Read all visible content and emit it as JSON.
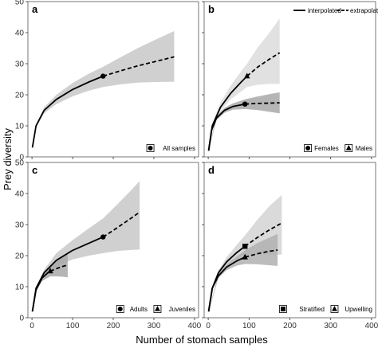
{
  "xlabel": "Number of stomach samples",
  "ylabel": "Prey diversity",
  "legend": {
    "interpolated": "interpolated",
    "extrapolated": "extrapolated"
  },
  "chart_data": [
    {
      "panel": "a",
      "type": "line",
      "xticks": [
        0,
        100,
        200,
        300,
        400
      ],
      "yticks": [
        0,
        10,
        20,
        30,
        40,
        50
      ],
      "xlim": [
        -10,
        410
      ],
      "ylim": [
        0,
        50
      ],
      "legend_position": "bottom-right",
      "series": [
        {
          "name": "All samples",
          "marker": "circle",
          "color": "#000000",
          "band_color": "#c8c8c8",
          "interpolated": {
            "x": [
              1,
              10,
              30,
              60,
              100,
              140,
              175
            ],
            "y": [
              3,
              10,
              15,
              18.5,
              21.7,
              24.1,
              26
            ]
          },
          "observed": {
            "x": 175,
            "y": 26
          },
          "extrapolated": {
            "x": [
              175,
              220,
              260,
              300,
              350
            ],
            "y": [
              26,
              27.8,
              29.3,
              30.6,
              32.2
            ]
          },
          "ci_lower": [
            [
              1,
              3
            ],
            [
              10,
              9.5
            ],
            [
              30,
              14
            ],
            [
              60,
              17
            ],
            [
              100,
              19.5
            ],
            [
              140,
              21.3
            ],
            [
              175,
              22.5
            ],
            [
              220,
              23.4
            ],
            [
              260,
              23.9
            ],
            [
              300,
              24.1
            ],
            [
              350,
              24.2
            ]
          ],
          "ci_upper": [
            [
              1,
              3
            ],
            [
              10,
              10.5
            ],
            [
              30,
              16
            ],
            [
              60,
              20
            ],
            [
              100,
              23.8
            ],
            [
              140,
              26.8
            ],
            [
              175,
              29
            ],
            [
              220,
              32.2
            ],
            [
              260,
              35
            ],
            [
              300,
              37.5
            ],
            [
              350,
              40.5
            ]
          ]
        }
      ]
    },
    {
      "panel": "b",
      "type": "line",
      "xticks": [
        0,
        100,
        200,
        300,
        400
      ],
      "yticks": [
        0,
        10,
        20,
        30,
        40,
        50
      ],
      "xlim": [
        -10,
        410
      ],
      "ylim": [
        0,
        50
      ],
      "legend_position": "bottom-right",
      "series": [
        {
          "name": "Females",
          "marker": "circle",
          "color": "#000000",
          "band_color": "#a8a8a8",
          "interpolated": {
            "x": [
              1,
              8,
              20,
              40,
              60,
              90
            ],
            "y": [
              2,
              8.5,
              12.5,
              15,
              16.2,
              17
            ]
          },
          "observed": {
            "x": 90,
            "y": 17
          },
          "extrapolated": {
            "x": [
              90,
              120,
              150,
              175
            ],
            "y": [
              17,
              17.2,
              17.3,
              17.4
            ]
          },
          "ci_lower": [
            [
              1,
              2
            ],
            [
              20,
              11.8
            ],
            [
              40,
              14.2
            ],
            [
              60,
              15.2
            ],
            [
              90,
              15.4
            ],
            [
              120,
              15.1
            ],
            [
              150,
              14.5
            ],
            [
              175,
              14
            ]
          ],
          "ci_upper": [
            [
              1,
              2
            ],
            [
              20,
              13.2
            ],
            [
              40,
              15.8
            ],
            [
              60,
              17.2
            ],
            [
              90,
              18.5
            ],
            [
              120,
              19.4
            ],
            [
              150,
              20.2
            ],
            [
              175,
              20.8
            ]
          ]
        },
        {
          "name": "Males",
          "marker": "triangle",
          "color": "#000000",
          "band_color": "#dcdcdc",
          "interpolated": {
            "x": [
              1,
              10,
              30,
              55,
              80,
              95
            ],
            "y": [
              2,
              10,
              16,
              20.5,
              24,
              26
            ]
          },
          "observed": {
            "x": 95,
            "y": 26
          },
          "extrapolated": {
            "x": [
              95,
              120,
              150,
              175
            ],
            "y": [
              26,
              28.8,
              31.5,
              33.5
            ]
          },
          "ci_lower": [
            [
              1,
              2
            ],
            [
              10,
              9.3
            ],
            [
              30,
              14.8
            ],
            [
              55,
              18.5
            ],
            [
              80,
              21
            ],
            [
              95,
              22.5
            ],
            [
              120,
              23.2
            ],
            [
              150,
              23.5
            ],
            [
              175,
              23.5
            ]
          ],
          "ci_upper": [
            [
              1,
              2
            ],
            [
              10,
              10.7
            ],
            [
              30,
              17.5
            ],
            [
              55,
              23
            ],
            [
              80,
              27.5
            ],
            [
              95,
              30
            ],
            [
              120,
              35
            ],
            [
              150,
              40
            ],
            [
              175,
              44.5
            ]
          ]
        }
      ]
    },
    {
      "panel": "c",
      "type": "line",
      "xticks": [
        0,
        100,
        200,
        300,
        400
      ],
      "yticks": [
        0,
        10,
        20,
        30,
        40,
        50
      ],
      "xlim": [
        -10,
        410
      ],
      "ylim": [
        0,
        50
      ],
      "legend_position": "bottom-right",
      "series": [
        {
          "name": "Adults",
          "marker": "circle",
          "color": "#000000",
          "band_color": "#c8c8c8",
          "interpolated": {
            "x": [
              1,
              10,
              30,
              60,
              100,
              140,
              175
            ],
            "y": [
              2,
              9.5,
              14.5,
              18.5,
              21.7,
              24,
              26
            ]
          },
          "observed": {
            "x": 175,
            "y": 26
          },
          "extrapolated": {
            "x": [
              175,
              210,
              240,
              265
            ],
            "y": [
              26,
              29,
              31.7,
              34
            ]
          },
          "ci_lower": [
            [
              1,
              2
            ],
            [
              10,
              9
            ],
            [
              30,
              13.5
            ],
            [
              60,
              16.5
            ],
            [
              100,
              18.8
            ],
            [
              140,
              20
            ],
            [
              175,
              20.8
            ],
            [
              210,
              21.5
            ],
            [
              240,
              21.8
            ],
            [
              265,
              22
            ]
          ],
          "ci_upper": [
            [
              1,
              2
            ],
            [
              10,
              10
            ],
            [
              30,
              15.5
            ],
            [
              60,
              20.8
            ],
            [
              100,
              25
            ],
            [
              140,
              28.8
            ],
            [
              175,
              32
            ],
            [
              210,
              36.5
            ],
            [
              240,
              40.5
            ],
            [
              265,
              44
            ]
          ]
        },
        {
          "name": "Juveniles",
          "marker": "triangle",
          "color": "#000000",
          "band_color": "#a8a8a8",
          "interpolated": {
            "x": [
              1,
              10,
              25,
              40,
              45
            ],
            "y": [
              2,
              9,
              12.8,
              14.6,
              15
            ]
          },
          "observed": {
            "x": 45,
            "y": 15
          },
          "extrapolated": {
            "x": [
              45,
              60,
              75,
              88
            ],
            "y": [
              15,
              15.8,
              16.5,
              17
            ]
          },
          "ci_lower": [
            [
              1,
              2
            ],
            [
              10,
              8.4
            ],
            [
              25,
              11.8
            ],
            [
              45,
              13.3
            ],
            [
              60,
              13.3
            ],
            [
              75,
              13.2
            ],
            [
              88,
              13
            ]
          ],
          "ci_upper": [
            [
              1,
              2
            ],
            [
              10,
              9.6
            ],
            [
              25,
              13.8
            ],
            [
              45,
              16.7
            ],
            [
              60,
              18.3
            ],
            [
              75,
              19.8
            ],
            [
              88,
              20.5
            ]
          ]
        }
      ]
    },
    {
      "panel": "d",
      "type": "line",
      "xticks": [
        0,
        100,
        200,
        300,
        400
      ],
      "yticks": [
        0,
        10,
        20,
        30,
        40,
        50
      ],
      "xlim": [
        -10,
        410
      ],
      "ylim": [
        0,
        50
      ],
      "legend_position": "bottom-right",
      "series": [
        {
          "name": "Stratified",
          "marker": "square",
          "color": "#000000",
          "band_color": "#d4d4d4",
          "interpolated": {
            "x": [
              1,
              10,
              25,
              45,
              70,
              90
            ],
            "y": [
              2,
              9.5,
              14.5,
              18,
              21,
              23
            ]
          },
          "observed": {
            "x": 90,
            "y": 23
          },
          "extrapolated": {
            "x": [
              90,
              120,
              150,
              180
            ],
            "y": [
              23,
              25.8,
              28.3,
              30.5
            ]
          },
          "ci_lower": [
            [
              1,
              2
            ],
            [
              10,
              9
            ],
            [
              25,
              13.8
            ],
            [
              45,
              16.8
            ],
            [
              70,
              19
            ],
            [
              90,
              20
            ],
            [
              120,
              20.2
            ],
            [
              150,
              20.3
            ],
            [
              180,
              20.3
            ]
          ],
          "ci_upper": [
            [
              1,
              2
            ],
            [
              10,
              10
            ],
            [
              25,
              15.2
            ],
            [
              45,
              19.5
            ],
            [
              70,
              23.5
            ],
            [
              90,
              26.5
            ],
            [
              120,
              31.5
            ],
            [
              150,
              36
            ],
            [
              180,
              39.5
            ]
          ]
        },
        {
          "name": "Upwelling",
          "marker": "triangle",
          "color": "#000000",
          "band_color": "#b0b0b0",
          "interpolated": {
            "x": [
              1,
              10,
              25,
              45,
              70,
              90
            ],
            "y": [
              2,
              9.5,
              13.5,
              16.3,
              18.3,
              19.5
            ]
          },
          "observed": {
            "x": 90,
            "y": 19.5
          },
          "extrapolated": {
            "x": [
              90,
              120,
              150,
              170
            ],
            "y": [
              19.5,
              20.6,
              21.4,
              21.8
            ]
          },
          "ci_lower": [
            [
              1,
              2
            ],
            [
              25,
              12.8
            ],
            [
              45,
              15.3
            ],
            [
              70,
              16.8
            ],
            [
              90,
              17.3
            ],
            [
              120,
              17.2
            ],
            [
              150,
              16.9
            ],
            [
              170,
              16.7
            ]
          ],
          "ci_upper": [
            [
              1,
              2
            ],
            [
              25,
              14.2
            ],
            [
              45,
              17.3
            ],
            [
              70,
              19.8
            ],
            [
              90,
              21.7
            ],
            [
              120,
              24
            ],
            [
              150,
              25.8
            ],
            [
              170,
              27
            ]
          ]
        }
      ]
    }
  ]
}
